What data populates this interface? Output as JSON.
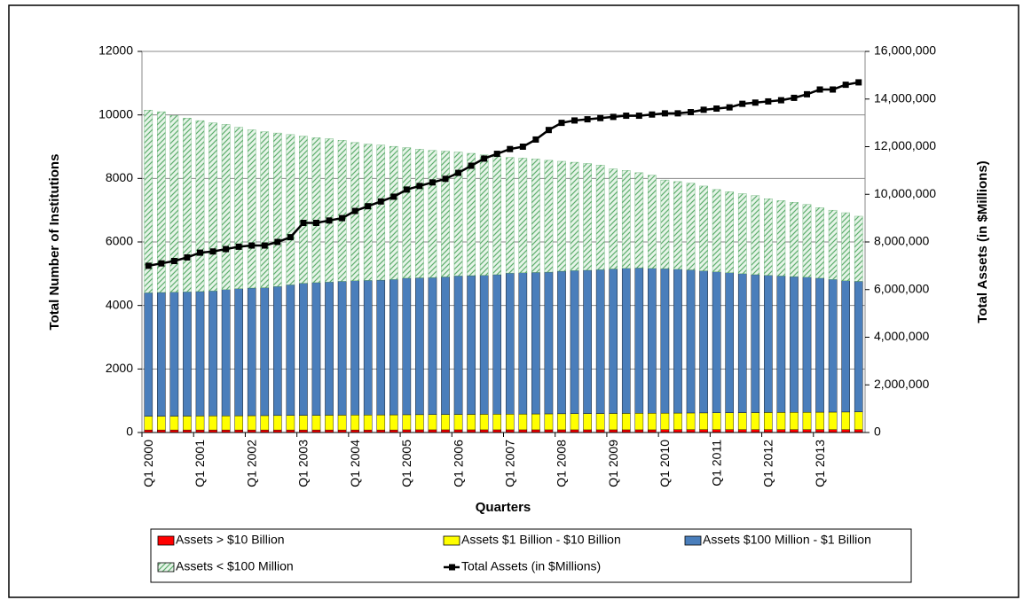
{
  "chart_data": {
    "type": "bar",
    "y_label": "Total Number of Institutions",
    "y2_label": "Total Assets (in $Millions)",
    "x_label": "Quarters",
    "categories": [
      "Q1 2000",
      null,
      null,
      null,
      "Q1 2001",
      null,
      null,
      null,
      "Q1 2002",
      null,
      null,
      null,
      "Q1 2003",
      null,
      null,
      null,
      "Q1 2004",
      null,
      null,
      null,
      "Q1 2005",
      null,
      null,
      null,
      "Q1 2006",
      null,
      null,
      null,
      "Q1 2007",
      null,
      null,
      null,
      "Q1 2008",
      null,
      null,
      null,
      "Q1 2009",
      null,
      null,
      null,
      "Q1 2010",
      null,
      null,
      null,
      "Q1 2011",
      null,
      null,
      null,
      "Q1 2012",
      null,
      null,
      null,
      "Q1 2013",
      null,
      null,
      null
    ],
    "stacked": true,
    "grid": true,
    "ylim": [
      0,
      12000
    ],
    "yticks": [
      0,
      2000,
      4000,
      6000,
      8000,
      10000,
      12000
    ],
    "y2lim": [
      0,
      16000000
    ],
    "y2ticks": [
      0,
      {
        "value": 2000000,
        "label": "2,000,000"
      },
      {
        "value": 4000000,
        "label": "4,000,000"
      },
      {
        "value": 6000000,
        "label": "6,000,000"
      },
      {
        "value": 8000000,
        "label": "8,000,000"
      },
      {
        "value": 10000000,
        "label": "10,000,000"
      },
      {
        "value": 12000000,
        "label": "12,000,000"
      },
      {
        "value": 14000000,
        "label": "14,000,000"
      },
      {
        "value": 16000000,
        "label": "16,000,000"
      }
    ],
    "series": [
      {
        "name": "Assets > $10 Billion",
        "color": "#ff0000",
        "values": [
          80,
          80,
          80,
          80,
          80,
          80,
          80,
          80,
          80,
          80,
          80,
          80,
          80,
          80,
          80,
          80,
          80,
          80,
          80,
          80,
          85,
          85,
          85,
          85,
          85,
          85,
          85,
          85,
          85,
          85,
          85,
          85,
          85,
          85,
          85,
          85,
          85,
          85,
          85,
          85,
          90,
          90,
          90,
          90,
          90,
          90,
          90,
          90,
          90,
          90,
          90,
          90,
          90,
          90,
          90,
          90
        ]
      },
      {
        "name": "Assets $1 Billion - $10 Billion",
        "color": "#ffff00",
        "values": [
          430,
          432,
          435,
          437,
          440,
          442,
          445,
          447,
          450,
          452,
          455,
          457,
          460,
          462,
          465,
          467,
          470,
          472,
          475,
          477,
          475,
          477,
          480,
          482,
          485,
          487,
          490,
          492,
          495,
          497,
          500,
          502,
          505,
          507,
          510,
          512,
          515,
          517,
          520,
          522,
          520,
          522,
          525,
          527,
          530,
          532,
          535,
          537,
          540,
          542,
          545,
          547,
          550,
          552,
          555,
          557
        ]
      },
      {
        "name": "Assets $100 Million - $1 Billion",
        "color": "#4a7ebb",
        "values": [
          3890,
          3898,
          3905,
          3913,
          3920,
          3938,
          3975,
          4003,
          4020,
          4028,
          4065,
          4113,
          4160,
          4178,
          4195,
          4213,
          4230,
          4238,
          4245,
          4263,
          4300,
          4308,
          4315,
          4333,
          4360,
          4368,
          4375,
          4393,
          4440,
          4448,
          4455,
          4463,
          4490,
          4508,
          4515,
          4533,
          4550,
          4568,
          4575,
          4563,
          4550,
          4528,
          4505,
          4473,
          4440,
          4408,
          4375,
          4343,
          4320,
          4298,
          4275,
          4253,
          4220,
          4178,
          4135,
          4113
        ]
      },
      {
        "name": "Assets < $100 Million",
        "color": "#5fae6e",
        "values": [
          5750,
          5690,
          5560,
          5470,
          5380,
          5290,
          5200,
          5080,
          4980,
          4910,
          4830,
          4730,
          4630,
          4560,
          4510,
          4440,
          4350,
          4290,
          4250,
          4190,
          4110,
          4050,
          4000,
          3960,
          3900,
          3850,
          3790,
          3730,
          3640,
          3610,
          3570,
          3520,
          3460,
          3410,
          3360,
          3290,
          3150,
          3080,
          3000,
          2930,
          2790,
          2760,
          2730,
          2670,
          2590,
          2550,
          2520,
          2490,
          2410,
          2370,
          2340,
          2290,
          2220,
          2180,
          2140,
          2050
        ]
      },
      {
        "name": "Total Assets (in $Millions)",
        "color": "#000000",
        "axis": "y2",
        "type": "line",
        "values": [
          7000000,
          7100000,
          7200000,
          7350000,
          7550000,
          7600000,
          7700000,
          7800000,
          7850000,
          7850000,
          8000000,
          8200000,
          8800000,
          8800000,
          8900000,
          9000000,
          9300000,
          9500000,
          9700000,
          9900000,
          10200000,
          10350000,
          10500000,
          10650000,
          10900000,
          11200000,
          11500000,
          11700000,
          11900000,
          12000000,
          12300000,
          12700000,
          13000000,
          13100000,
          13150000,
          13200000,
          13250000,
          13300000,
          13300000,
          13350000,
          13400000,
          13400000,
          13450000,
          13550000,
          13600000,
          13650000,
          13800000,
          13850000,
          13900000,
          13950000,
          14050000,
          14200000,
          14400000,
          14400000,
          14600000,
          14700000
        ]
      }
    ]
  }
}
